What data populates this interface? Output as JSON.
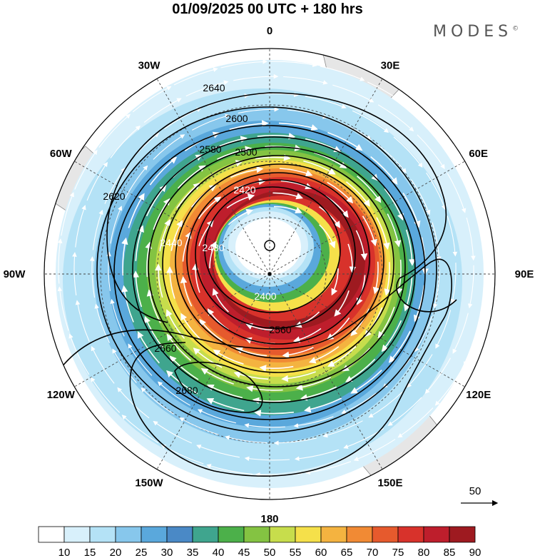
{
  "title": "01/09/2025  00 UTC  + 180 hrs",
  "brand": "MODES",
  "brand_mark": "©",
  "longitude_labels": [
    "0",
    "30E",
    "60E",
    "90E",
    "120E",
    "150E",
    "180",
    "150W",
    "120W",
    "90W",
    "60W",
    "30W"
  ],
  "contour_labels": [
    "2400",
    "2420",
    "2440",
    "2480",
    "2500",
    "2560",
    "2580",
    "2600",
    "2620",
    "2640",
    "2660",
    "2680"
  ],
  "vector_reference": {
    "label": "50"
  },
  "colorbar": {
    "colors": [
      "#ffffff",
      "#d8f0fb",
      "#b4e2f6",
      "#87c7ec",
      "#5aa8dc",
      "#4a89c6",
      "#3fa58e",
      "#4cb04a",
      "#84c342",
      "#c7dd4c",
      "#f5e04a",
      "#f4b340",
      "#f18a34",
      "#e65a2d",
      "#d8322b",
      "#be1e2c",
      "#9e1a20"
    ],
    "tick_labels": [
      "10",
      "15",
      "20",
      "25",
      "30",
      "35",
      "40",
      "45",
      "50",
      "55",
      "60",
      "65",
      "70",
      "75",
      "80",
      "85",
      "90"
    ]
  },
  "map_style": {
    "land": "#e4e4e4",
    "coast": "#777777",
    "graticule": "#444444",
    "contour": "#000000",
    "vector": "#ffffff"
  }
}
